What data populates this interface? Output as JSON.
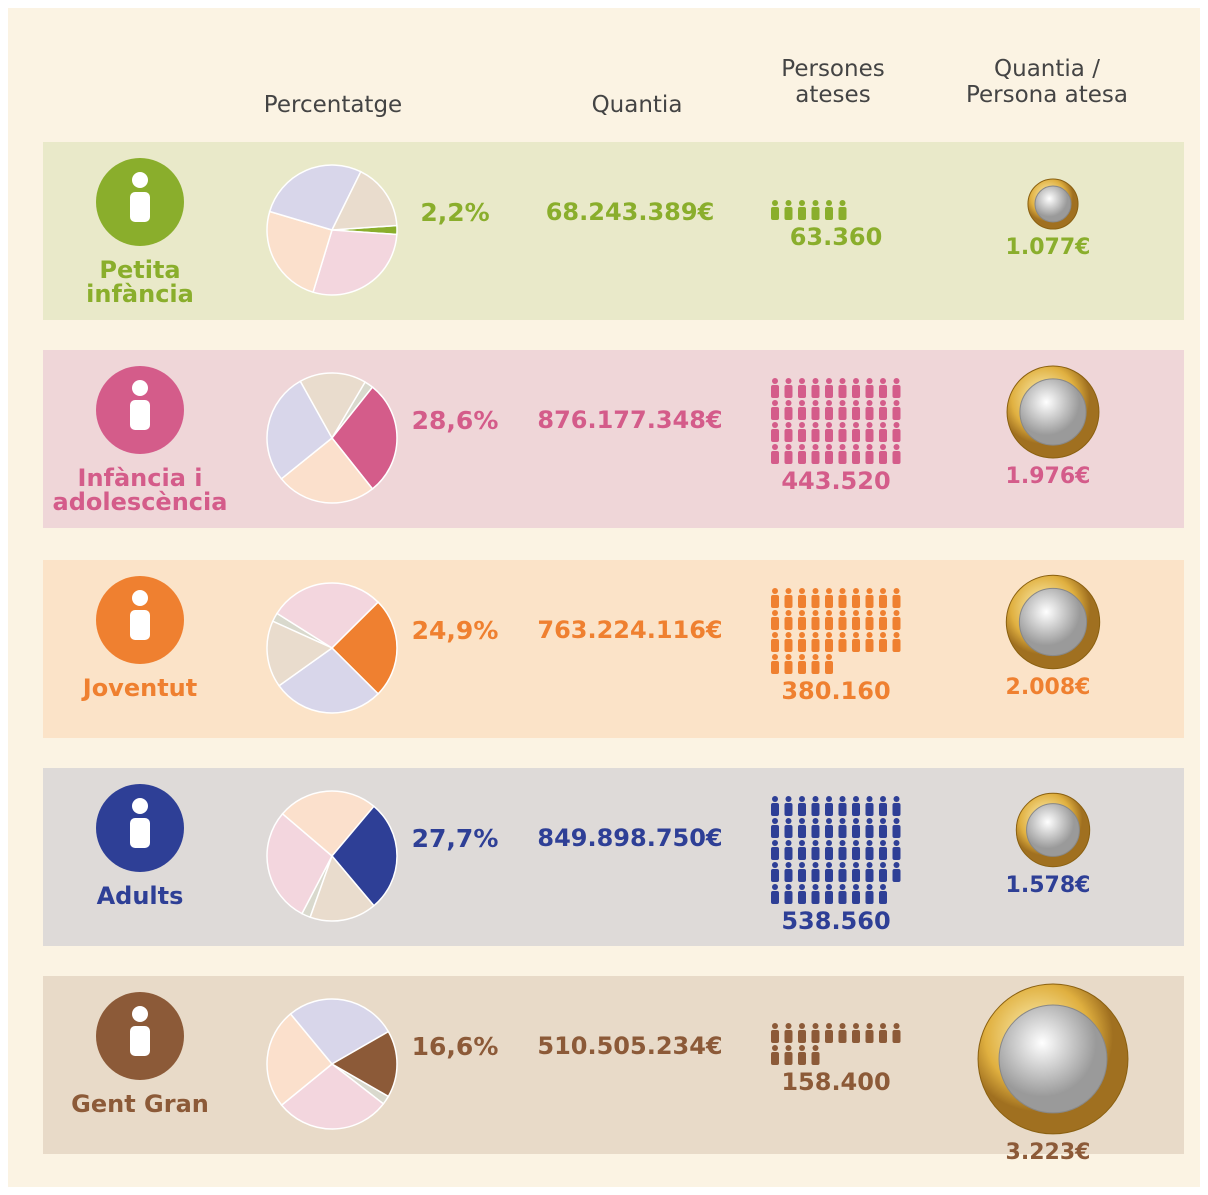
{
  "header": {
    "percent": "Percentatge",
    "amount": "Quantia",
    "persons": "Persones ateses",
    "per_person": "Quantia / Persona atesa"
  },
  "rows": [
    {
      "label": "Petita infància",
      "color": "#8aae2c",
      "pale": "#d9d9cd",
      "background": "#e9e9c9",
      "share": {
        "value": 2.2,
        "label": "2,2%"
      },
      "amount": "68.243.389€",
      "persons": {
        "value": 63360,
        "label": "63.360"
      },
      "per_person": {
        "value": 1077,
        "label": "1.077€"
      }
    },
    {
      "label": "Infància i adolescència",
      "color": "#d45c8a",
      "pale": "#f3d6de",
      "background": "#efd6d8",
      "share": {
        "value": 28.6,
        "label": "28,6%"
      },
      "amount": "876.177.348€",
      "persons": {
        "value": 443520,
        "label": "443.520"
      },
      "per_person": {
        "value": 1976,
        "label": "1.976€"
      }
    },
    {
      "label": "Joventut",
      "color": "#ef8030",
      "pale": "#fbe0cc",
      "background": "#fbe3c8",
      "share": {
        "value": 24.9,
        "label": "24,9%"
      },
      "amount": "763.224.116€",
      "persons": {
        "value": 380160,
        "label": "380.160"
      },
      "per_person": {
        "value": 2008,
        "label": "2.008€"
      }
    },
    {
      "label": "Adults",
      "color": "#2e3f96",
      "pale": "#d8d6ea",
      "background": "#dedad8",
      "share": {
        "value": 27.7,
        "label": "27,7%"
      },
      "amount": "849.898.750€",
      "persons": {
        "value": 538560,
        "label": "538.560"
      },
      "per_person": {
        "value": 1578,
        "label": "1.578€"
      }
    },
    {
      "label": "Gent Gran",
      "color": "#8c5a38",
      "pale": "#e9dccd",
      "background": "#e8dac8",
      "share": {
        "value": 16.6,
        "label": "16,6%"
      },
      "amount": "510.505.234€",
      "persons": {
        "value": 158400,
        "label": "158.400"
      },
      "per_person": {
        "value": 3223,
        "label": "3.223€"
      }
    }
  ]
}
